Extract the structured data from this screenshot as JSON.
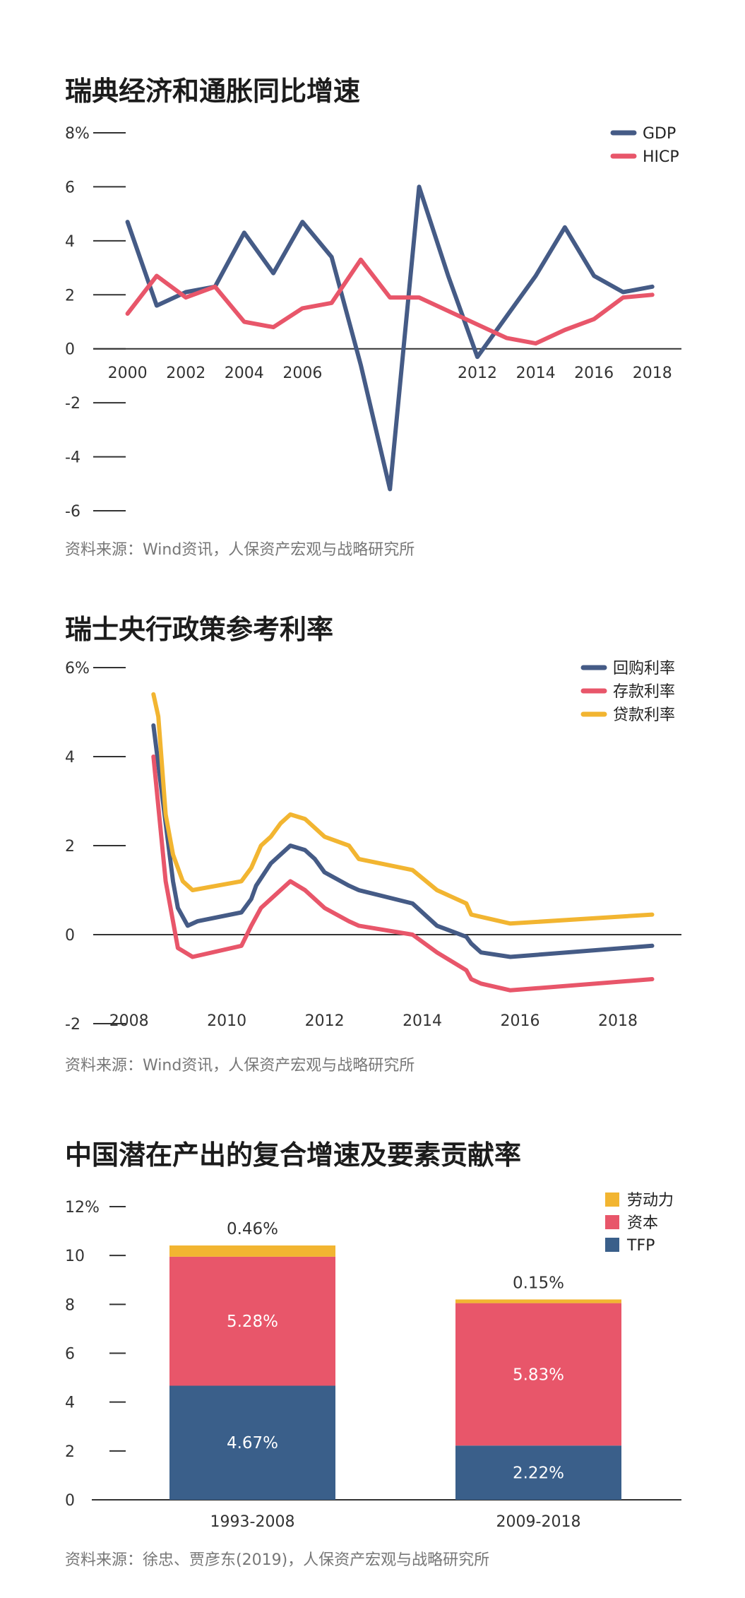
{
  "charts": {
    "c1": {
      "title": "瑞典经济和通胀同比增速",
      "source": "资料来源：Wind资讯，人保资产宏观与战略研究所",
      "y_ticks": [
        "8%",
        "6",
        "4",
        "2",
        "0",
        "-2",
        "-4",
        "-6"
      ],
      "x_ticks": [
        "2000",
        "2002",
        "2004",
        "2006",
        "2012",
        "2014",
        "2016",
        "2018"
      ],
      "legend": [
        "GDP",
        "HICP"
      ]
    },
    "c2": {
      "title": "瑞士央行政策参考利率",
      "source": "资料来源：Wind资讯，人保资产宏观与战略研究所",
      "y_ticks": [
        "6%",
        "4",
        "2",
        "0",
        "-2"
      ],
      "x_ticks": [
        "2008",
        "2010",
        "2012",
        "2014",
        "2016",
        "2018"
      ],
      "legend": [
        "回购利率",
        "存款利率",
        "贷款利率"
      ]
    },
    "c3": {
      "title": "中国潜在产出的复合增速及要素贡献率",
      "source": "资料来源：徐忠、贾彦东(2019)，人保资产宏观与战略研究所",
      "y_ticks": [
        "12%",
        "10",
        "8",
        "6",
        "4",
        "2",
        "0"
      ],
      "x_ticks": [
        "1993-2008",
        "2009-2018"
      ],
      "legend": [
        "劳动力",
        "资本",
        "TFP"
      ],
      "bar_labels": {
        "b1": {
          "labor": "0.46%",
          "capital": "5.28%",
          "tfp": "4.67%"
        },
        "b2": {
          "labor": "0.15%",
          "capital": "5.83%",
          "tfp": "2.22%"
        }
      }
    }
  },
  "colors": {
    "blue": "#455b86",
    "red": "#e8566a",
    "yellow": "#f2b531",
    "bar_blue": "#3a5f8a"
  },
  "chart_data": [
    {
      "type": "line",
      "title": "瑞典经济和通胀同比增速",
      "xlabel": "",
      "ylabel": "",
      "ylim": [
        -6,
        8
      ],
      "xlim": [
        1999.5,
        2019
      ],
      "series": [
        {
          "name": "GDP",
          "x": [
            2000,
            2001,
            2002,
            2003,
            2004,
            2005,
            2006,
            2007,
            2008,
            2009,
            2010,
            2011,
            2012,
            2013,
            2014,
            2015,
            2016,
            2017,
            2018
          ],
          "values": [
            4.7,
            1.6,
            2.1,
            2.3,
            4.3,
            2.8,
            4.7,
            3.4,
            -0.6,
            -5.2,
            6.0,
            2.7,
            -0.3,
            1.2,
            2.7,
            4.5,
            2.7,
            2.1,
            2.3
          ]
        },
        {
          "name": "HICP",
          "x": [
            2000,
            2001,
            2002,
            2003,
            2004,
            2005,
            2006,
            2007,
            2008,
            2009,
            2010,
            2011,
            2012,
            2013,
            2014,
            2015,
            2016,
            2017,
            2018
          ],
          "values": [
            1.3,
            2.7,
            1.9,
            2.3,
            1.0,
            0.8,
            1.5,
            1.7,
            3.3,
            1.9,
            1.9,
            1.4,
            0.9,
            0.4,
            0.2,
            0.7,
            1.1,
            1.9,
            2.0
          ]
        }
      ]
    },
    {
      "type": "line",
      "title": "瑞士央行政策参考利率",
      "xlabel": "",
      "ylabel": "",
      "ylim": [
        -2,
        6
      ],
      "xlim": [
        2007.6,
        2019.3
      ],
      "series": [
        {
          "name": "回购利率",
          "x": [
            2008.5,
            2008.75,
            2008.9,
            2009.0,
            2009.2,
            2009.4,
            2010.3,
            2010.5,
            2010.6,
            2010.9,
            2011.3,
            2011.6,
            2011.8,
            2012.0,
            2012.5,
            2012.7,
            2013.8,
            2014.3,
            2014.9,
            2015.0,
            2015.2,
            2015.8,
            2018.7
          ],
          "values": [
            4.7,
            2.5,
            1.2,
            0.6,
            0.2,
            0.3,
            0.5,
            0.8,
            1.1,
            1.6,
            2.0,
            1.9,
            1.7,
            1.4,
            1.1,
            1.0,
            0.7,
            0.2,
            -0.05,
            -0.2,
            -0.4,
            -0.5,
            -0.25
          ]
        },
        {
          "name": "存款利率",
          "x": [
            2008.5,
            2008.75,
            2008.9,
            2009.0,
            2009.3,
            2010.3,
            2010.5,
            2010.7,
            2011.3,
            2011.6,
            2011.8,
            2012.0,
            2012.5,
            2012.7,
            2013.8,
            2014.3,
            2014.9,
            2015.0,
            2015.2,
            2015.8,
            2018.7
          ],
          "values": [
            4.0,
            1.2,
            0.3,
            -0.3,
            -0.5,
            -0.25,
            0.2,
            0.6,
            1.2,
            1.0,
            0.8,
            0.6,
            0.3,
            0.2,
            0.0,
            -0.4,
            -0.8,
            -1.0,
            -1.1,
            -1.25,
            -1.0
          ]
        },
        {
          "name": "贷款利率",
          "x": [
            2008.5,
            2008.6,
            2008.75,
            2008.9,
            2009.1,
            2009.3,
            2010.3,
            2010.5,
            2010.7,
            2010.9,
            2011.1,
            2011.3,
            2011.6,
            2011.8,
            2012.0,
            2012.5,
            2012.7,
            2013.8,
            2014.3,
            2014.9,
            2015.0,
            2015.2,
            2015.8,
            2018.7
          ],
          "values": [
            5.4,
            4.9,
            2.7,
            1.8,
            1.2,
            1.0,
            1.2,
            1.5,
            2.0,
            2.2,
            2.5,
            2.7,
            2.6,
            2.4,
            2.2,
            2.0,
            1.7,
            1.45,
            1.0,
            0.7,
            0.45,
            0.4,
            0.25,
            0.45
          ]
        }
      ]
    },
    {
      "type": "bar",
      "stacked": true,
      "title": "中国潜在产出的复合增速及要素贡献率",
      "xlabel": "",
      "ylabel": "",
      "ylim": [
        0,
        12
      ],
      "categories": [
        "1993-2008",
        "2009-2018"
      ],
      "series": [
        {
          "name": "TFP",
          "values": [
            4.67,
            2.22
          ]
        },
        {
          "name": "资本",
          "values": [
            5.28,
            5.83
          ]
        },
        {
          "name": "劳动力",
          "values": [
            0.46,
            0.15
          ]
        }
      ]
    }
  ]
}
